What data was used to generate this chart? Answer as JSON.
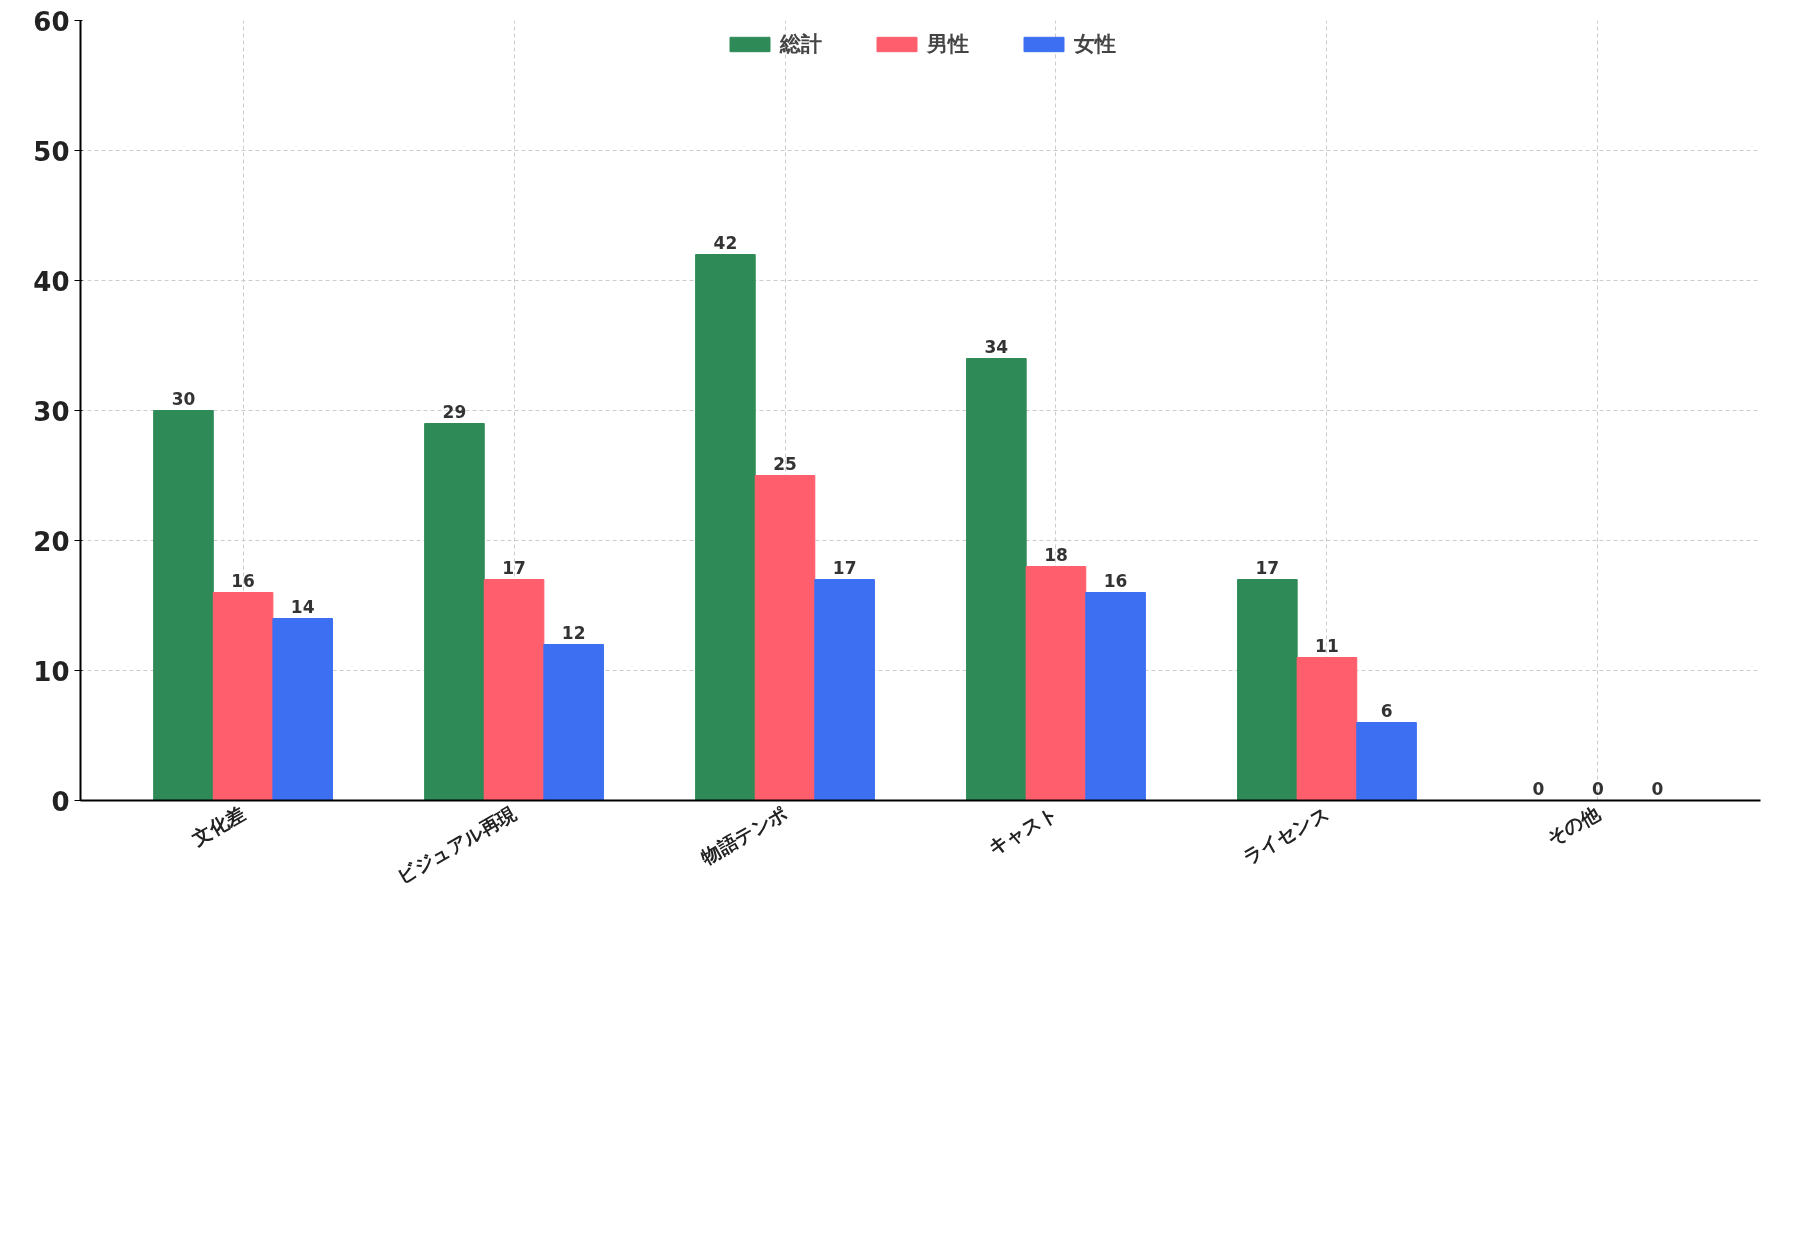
{
  "chart_data": {
    "type": "bar",
    "categories": [
      "文化差",
      "ビジュアル再現",
      "物語テンポ",
      "キャスト",
      "ライセンス",
      "その他"
    ],
    "series": [
      {
        "name": "総計",
        "color": "#2e8b57",
        "values": [
          30,
          29,
          42,
          34,
          17,
          0
        ]
      },
      {
        "name": "男性",
        "color": "#ff5e6c",
        "values": [
          16,
          17,
          25,
          18,
          11,
          0
        ]
      },
      {
        "name": "女性",
        "color": "#3d6ff2",
        "values": [
          14,
          12,
          17,
          16,
          6,
          0
        ]
      }
    ],
    "ylim": [
      0,
      60
    ],
    "yticks": [
      0,
      10,
      20,
      30,
      40,
      50,
      60
    ],
    "grid": true,
    "legend": "top",
    "data_labels": true
  }
}
